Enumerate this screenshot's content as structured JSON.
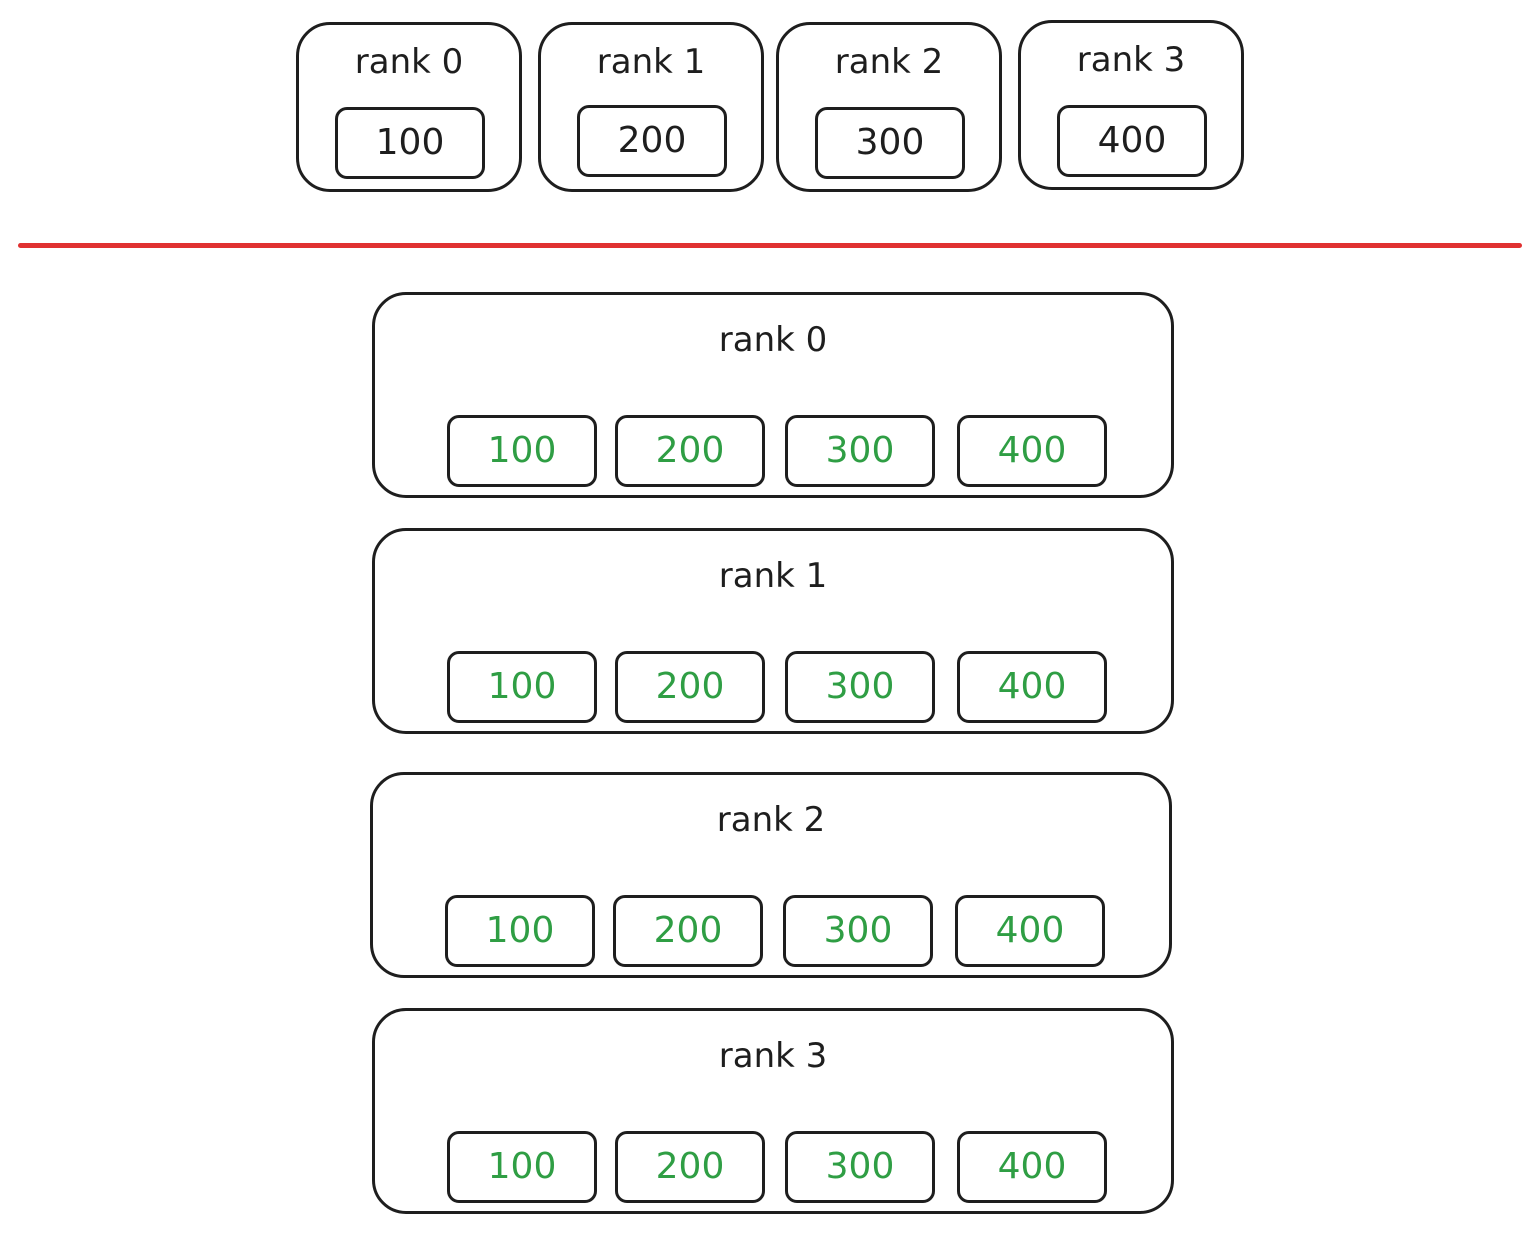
{
  "before": {
    "ranks": [
      {
        "label": "rank 0",
        "value": "100"
      },
      {
        "label": "rank 1",
        "value": "200"
      },
      {
        "label": "rank 2",
        "value": "300"
      },
      {
        "label": "rank 3",
        "value": "400"
      }
    ]
  },
  "after": {
    "ranks": [
      {
        "label": "rank 0",
        "values": [
          "100",
          "200",
          "300",
          "400"
        ]
      },
      {
        "label": "rank 1",
        "values": [
          "100",
          "200",
          "300",
          "400"
        ]
      },
      {
        "label": "rank 2",
        "values": [
          "100",
          "200",
          "300",
          "400"
        ]
      },
      {
        "label": "rank 3",
        "values": [
          "100",
          "200",
          "300",
          "400"
        ]
      }
    ]
  },
  "colors": {
    "stroke": "#1e1e1e",
    "divider": "#e03131",
    "gathered_value": "#2f9e44"
  }
}
